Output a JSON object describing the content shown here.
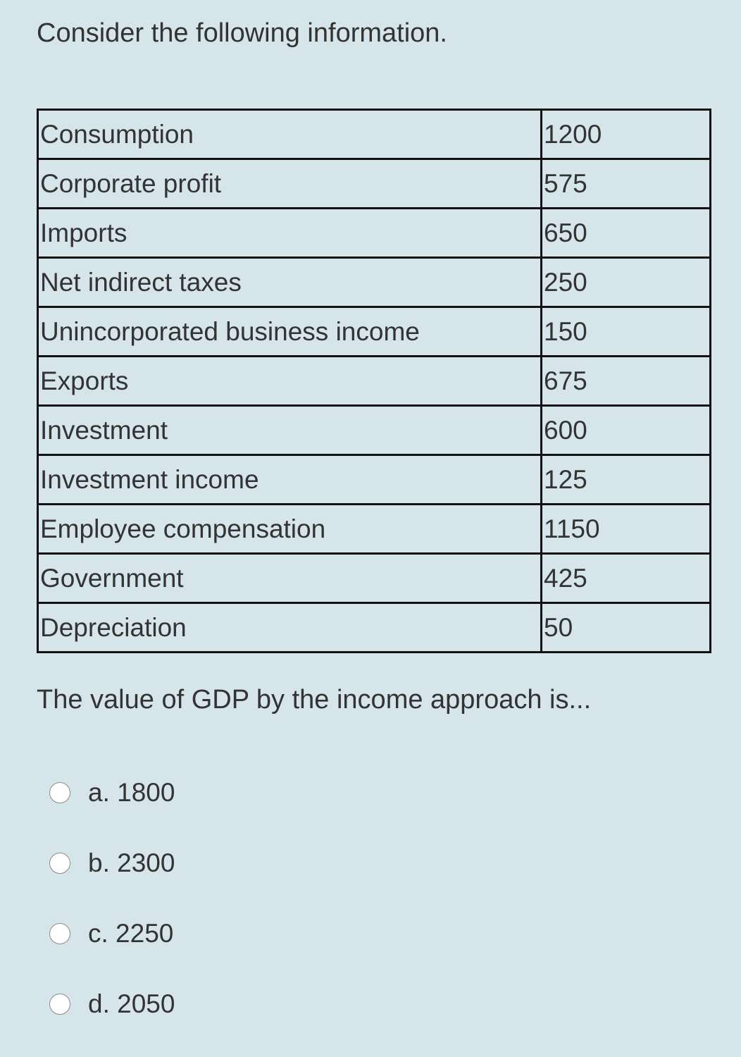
{
  "intro_text": "Consider the following information.",
  "table": {
    "rows": [
      {
        "label": "Consumption",
        "value": "1200"
      },
      {
        "label": "Corporate profit",
        "value": "575"
      },
      {
        "label": "Imports",
        "value": "650"
      },
      {
        "label": "Net indirect taxes",
        "value": "250"
      },
      {
        "label": "Unincorporated business income",
        "value": "150"
      },
      {
        "label": "Exports",
        "value": "675"
      },
      {
        "label": "Investment",
        "value": "600"
      },
      {
        "label": "Investment income",
        "value": "125"
      },
      {
        "label": "Employee compensation",
        "value": "1150"
      },
      {
        "label": "Government",
        "value": "425"
      },
      {
        "label": "Depreciation",
        "value": "50"
      }
    ]
  },
  "question_text": "The value of GDP by the income approach is...",
  "options": [
    {
      "label": "a. 1800"
    },
    {
      "label": "b. 2300"
    },
    {
      "label": "c. 2250"
    },
    {
      "label": "d. 2050"
    }
  ]
}
